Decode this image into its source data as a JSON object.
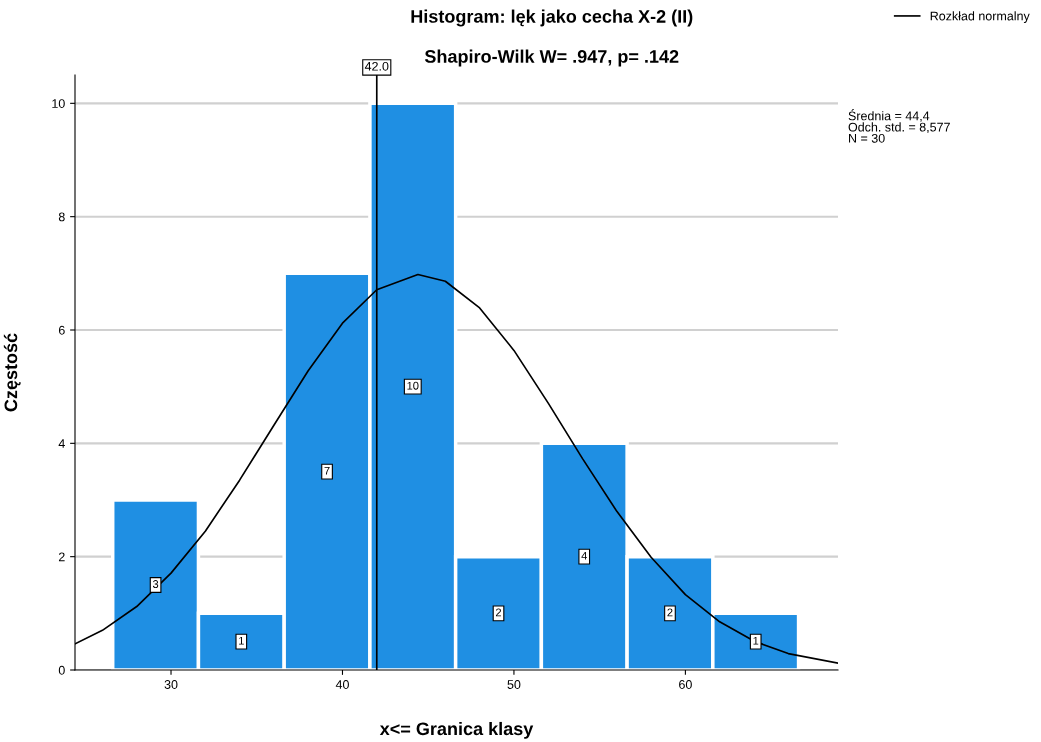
{
  "chart_data": {
    "type": "histogram",
    "title": "Histogram: lęk jako cecha X-2 (II)",
    "subtitle": "Shapiro-Wilk W= .947, p= .142",
    "xlabel": "x<= Granica klasy",
    "ylabel": "Częstość",
    "series": [
      {
        "color": "#1f8fe3",
        "bins": [
          26.6,
          31.6,
          36.6,
          41.6,
          46.6,
          51.6,
          56.6,
          61.6,
          66.6
        ],
        "values": [
          3,
          1,
          7,
          10,
          2,
          4,
          2,
          1
        ],
        "value_labels": [
          "3",
          "1",
          "7",
          "10",
          "2",
          "4",
          "2",
          "1"
        ]
      },
      {
        "type": "line",
        "name": "Rozkład normalny",
        "color": "#000000",
        "x": [
          24.4,
          26,
          28,
          30,
          32,
          34,
          36,
          38,
          40,
          42,
          44.4,
          46,
          48,
          50,
          52,
          54,
          56,
          58,
          60,
          62,
          64,
          66,
          68.9
        ],
        "values": [
          0.46,
          0.7,
          1.12,
          1.71,
          2.45,
          3.35,
          4.32,
          5.28,
          6.12,
          6.71,
          6.98,
          6.86,
          6.39,
          5.64,
          4.71,
          3.73,
          2.8,
          1.99,
          1.33,
          0.85,
          0.51,
          0.29,
          0.12
        ]
      }
    ],
    "xlim": [
      24.4,
      68.9
    ],
    "xticks": [
      30,
      40,
      50,
      60
    ],
    "ylim": [
      0,
      10.5
    ],
    "yticks": [
      0,
      2,
      4,
      6,
      8,
      10
    ],
    "ref_lines": [
      {
        "axis": "x",
        "value": 42.0,
        "label": "42.0",
        "color": "#000000"
      }
    ],
    "annotations": [
      "Średnia = 44,4\nOdch. std. = 8,577\nN = 30"
    ],
    "grid": "y",
    "legend": "top right",
    "marker": "none",
    "line_style": "solid"
  }
}
